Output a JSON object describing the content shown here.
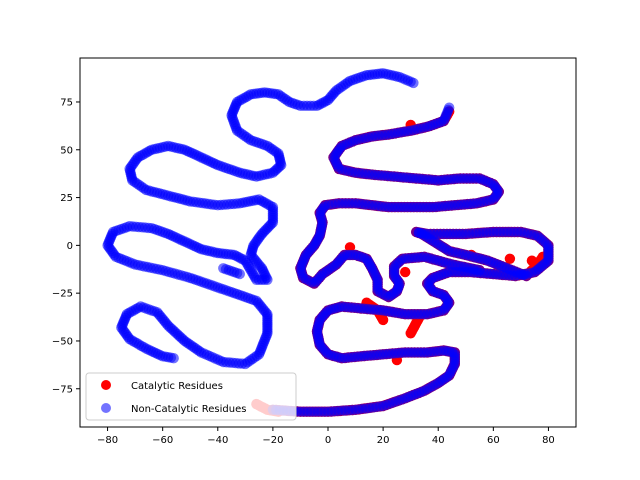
{
  "chart_data": {
    "type": "scatter",
    "title": "",
    "xlabel": "",
    "ylabel": "",
    "xlim": [
      -90,
      90
    ],
    "ylim": [
      -95,
      98
    ],
    "xticks": [
      -80,
      -60,
      -40,
      -20,
      0,
      20,
      40,
      60,
      80
    ],
    "yticks": [
      -75,
      -50,
      -25,
      0,
      25,
      50,
      75
    ],
    "grid": false,
    "legend_position": "lower-left",
    "series": [
      {
        "name": "Catalytic Residues",
        "color": "#ff0000",
        "opacity": 1.0,
        "path": [
          [
            -20,
            -86
          ],
          [
            -10,
            -87
          ],
          [
            0,
            -87
          ],
          [
            10,
            -86
          ],
          [
            20,
            -84
          ],
          [
            28,
            -80
          ],
          [
            35,
            -76
          ],
          [
            40,
            -72
          ],
          [
            44,
            -68
          ],
          [
            46,
            -62
          ],
          [
            46,
            -56
          ],
          [
            42,
            -55
          ],
          [
            36,
            -56
          ],
          [
            28,
            -56
          ],
          [
            20,
            -57
          ],
          [
            12,
            -58
          ],
          [
            5,
            -59
          ],
          [
            0,
            -57
          ],
          [
            -3,
            -52
          ],
          [
            -4,
            -45
          ],
          [
            -3,
            -39
          ],
          [
            0,
            -34
          ],
          [
            5,
            -32
          ],
          [
            12,
            -33
          ],
          [
            20,
            -34
          ],
          [
            28,
            -36
          ],
          [
            36,
            -36
          ],
          [
            42,
            -34
          ],
          [
            44,
            -30
          ],
          [
            42,
            -26
          ],
          [
            38,
            -24
          ],
          [
            36,
            -20
          ],
          [
            38,
            -17
          ],
          [
            44,
            -14
          ],
          [
            52,
            -14
          ],
          [
            60,
            -15
          ],
          [
            68,
            -16
          ],
          [
            75,
            -14
          ],
          [
            80,
            -8
          ],
          [
            80,
            0
          ],
          [
            76,
            5
          ],
          [
            70,
            7
          ],
          [
            60,
            7
          ],
          [
            50,
            6
          ],
          [
            42,
            6
          ],
          [
            36,
            6
          ],
          [
            32,
            7
          ],
          [
            34,
            6
          ],
          [
            44,
            -3
          ],
          [
            50,
            -5
          ],
          [
            58,
            -8
          ],
          [
            65,
            -12
          ],
          [
            72,
            -16
          ],
          [
            76,
            -10
          ],
          [
            78,
            -6
          ],
          [
            55,
            -13
          ],
          [
            45,
            -10
          ],
          [
            35,
            -6
          ],
          [
            27,
            -7
          ],
          [
            24,
            -11
          ],
          [
            24,
            -16
          ],
          [
            26,
            -20
          ],
          [
            25,
            -24
          ],
          [
            22,
            -27
          ],
          [
            18,
            -24
          ],
          [
            18,
            -18
          ],
          [
            16,
            -12
          ],
          [
            14,
            -7
          ],
          [
            10,
            -5
          ],
          [
            6,
            -5
          ],
          [
            3,
            -10
          ],
          [
            -2,
            -15
          ],
          [
            -5,
            -20
          ],
          [
            -9,
            -17
          ],
          [
            -10,
            -12
          ],
          [
            -8,
            -5
          ],
          [
            -5,
            0
          ],
          [
            -3,
            5
          ],
          [
            -2,
            12
          ],
          [
            -3,
            17
          ],
          [
            -1,
            21
          ],
          [
            4,
            22
          ],
          [
            10,
            22
          ],
          [
            16,
            21
          ],
          [
            22,
            20
          ],
          [
            30,
            20
          ],
          [
            38,
            20
          ],
          [
            46,
            21
          ],
          [
            54,
            22
          ],
          [
            60,
            24
          ],
          [
            62,
            28
          ],
          [
            60,
            32
          ],
          [
            55,
            35
          ],
          [
            48,
            35
          ],
          [
            40,
            34
          ],
          [
            32,
            35
          ],
          [
            24,
            36
          ],
          [
            16,
            37
          ],
          [
            10,
            38
          ],
          [
            4,
            40
          ],
          [
            2,
            46
          ],
          [
            5,
            52
          ],
          [
            10,
            55
          ],
          [
            16,
            57
          ],
          [
            22,
            58
          ],
          [
            30,
            60
          ],
          [
            36,
            62
          ],
          [
            42,
            65
          ],
          [
            44,
            70
          ],
          [
            30,
            63
          ],
          [
            14,
            -30
          ],
          [
            18,
            -34
          ],
          [
            20,
            -39
          ],
          [
            25,
            -60
          ],
          [
            30,
            -46
          ],
          [
            33,
            -38
          ],
          [
            -26,
            -83
          ],
          [
            -22,
            -86
          ],
          [
            -18,
            -87
          ],
          [
            74,
            -8
          ],
          [
            52,
            -5
          ],
          [
            66,
            -7
          ],
          [
            8,
            -1
          ],
          [
            28,
            -14
          ]
        ]
      },
      {
        "name": "Non-Catalytic Residues",
        "color": "#0000ff",
        "opacity": 0.55,
        "path": [
          [
            -20,
            -86
          ],
          [
            -10,
            -87
          ],
          [
            0,
            -87
          ],
          [
            10,
            -86
          ],
          [
            20,
            -84
          ],
          [
            28,
            -80
          ],
          [
            35,
            -76
          ],
          [
            40,
            -72
          ],
          [
            44,
            -68
          ],
          [
            46,
            -62
          ],
          [
            46,
            -56
          ],
          [
            42,
            -55
          ],
          [
            36,
            -56
          ],
          [
            28,
            -56
          ],
          [
            20,
            -57
          ],
          [
            12,
            -58
          ],
          [
            5,
            -59
          ],
          [
            0,
            -57
          ],
          [
            -3,
            -52
          ],
          [
            -4,
            -45
          ],
          [
            -3,
            -39
          ],
          [
            0,
            -34
          ],
          [
            5,
            -32
          ],
          [
            12,
            -33
          ],
          [
            20,
            -34
          ],
          [
            28,
            -36
          ],
          [
            36,
            -36
          ],
          [
            42,
            -34
          ],
          [
            44,
            -30
          ],
          [
            42,
            -26
          ],
          [
            38,
            -24
          ],
          [
            36,
            -20
          ],
          [
            38,
            -17
          ],
          [
            44,
            -14
          ],
          [
            52,
            -14
          ],
          [
            60,
            -15
          ],
          [
            68,
            -16
          ],
          [
            75,
            -14
          ],
          [
            80,
            -8
          ],
          [
            80,
            0
          ],
          [
            76,
            5
          ],
          [
            70,
            7
          ],
          [
            60,
            7
          ],
          [
            50,
            6
          ],
          [
            42,
            6
          ],
          [
            36,
            6
          ],
          [
            32,
            7
          ],
          [
            34,
            6
          ],
          [
            44,
            -3
          ],
          [
            50,
            -5
          ],
          [
            58,
            -8
          ],
          [
            65,
            -12
          ],
          [
            72,
            -16
          ],
          [
            55,
            -13
          ],
          [
            45,
            -10
          ],
          [
            35,
            -6
          ],
          [
            27,
            -7
          ],
          [
            24,
            -11
          ],
          [
            24,
            -16
          ],
          [
            26,
            -20
          ],
          [
            25,
            -24
          ],
          [
            22,
            -27
          ],
          [
            18,
            -24
          ],
          [
            18,
            -18
          ],
          [
            16,
            -12
          ],
          [
            14,
            -7
          ],
          [
            10,
            -5
          ],
          [
            6,
            -5
          ],
          [
            3,
            -10
          ],
          [
            -2,
            -15
          ],
          [
            -5,
            -20
          ],
          [
            -9,
            -17
          ],
          [
            -10,
            -12
          ],
          [
            -8,
            -5
          ],
          [
            -5,
            0
          ],
          [
            -3,
            5
          ],
          [
            -2,
            12
          ],
          [
            -3,
            17
          ],
          [
            -1,
            21
          ],
          [
            4,
            22
          ],
          [
            10,
            22
          ],
          [
            16,
            21
          ],
          [
            22,
            20
          ],
          [
            30,
            20
          ],
          [
            38,
            20
          ],
          [
            46,
            21
          ],
          [
            54,
            22
          ],
          [
            60,
            24
          ],
          [
            62,
            28
          ],
          [
            60,
            32
          ],
          [
            55,
            35
          ],
          [
            48,
            35
          ],
          [
            40,
            34
          ],
          [
            32,
            35
          ],
          [
            24,
            36
          ],
          [
            16,
            37
          ],
          [
            10,
            38
          ],
          [
            4,
            40
          ],
          [
            2,
            46
          ],
          [
            5,
            52
          ],
          [
            10,
            55
          ],
          [
            16,
            57
          ],
          [
            22,
            58
          ],
          [
            30,
            60
          ],
          [
            36,
            62
          ],
          [
            42,
            65
          ],
          [
            44,
            72
          ]
        ],
        "path2": [
          [
            31,
            85
          ],
          [
            26,
            88
          ],
          [
            20,
            90
          ],
          [
            14,
            89
          ],
          [
            8,
            86
          ],
          [
            3,
            81
          ],
          [
            0,
            76
          ],
          [
            -4,
            73
          ],
          [
            -10,
            73
          ],
          [
            -14,
            75
          ],
          [
            -18,
            79
          ],
          [
            -23,
            80
          ],
          [
            -28,
            79
          ],
          [
            -33,
            75
          ],
          [
            -35,
            68
          ],
          [
            -33,
            60
          ],
          [
            -28,
            55
          ],
          [
            -22,
            52
          ],
          [
            -18,
            48
          ],
          [
            -17,
            42
          ],
          [
            -20,
            38
          ],
          [
            -26,
            36
          ],
          [
            -32,
            38
          ],
          [
            -40,
            42
          ],
          [
            -46,
            46
          ],
          [
            -52,
            50
          ],
          [
            -58,
            52
          ],
          [
            -64,
            50
          ],
          [
            -69,
            46
          ],
          [
            -72,
            40
          ],
          [
            -71,
            34
          ],
          [
            -66,
            29
          ],
          [
            -58,
            26
          ],
          [
            -50,
            23
          ],
          [
            -40,
            21
          ],
          [
            -32,
            22
          ],
          [
            -25,
            24
          ],
          [
            -20,
            20
          ],
          [
            -20,
            12
          ],
          [
            -24,
            6
          ],
          [
            -27,
            0
          ],
          [
            -28,
            -5
          ],
          [
            -24,
            -12
          ],
          [
            -22,
            -18
          ],
          [
            -26,
            -18
          ],
          [
            -30,
            -8
          ],
          [
            -34,
            -5
          ],
          [
            -40,
            -4
          ],
          [
            -46,
            -2
          ],
          [
            -52,
            2
          ],
          [
            -58,
            6
          ],
          [
            -64,
            9
          ],
          [
            -72,
            10
          ],
          [
            -78,
            7
          ],
          [
            -80,
            0
          ],
          [
            -77,
            -6
          ],
          [
            -70,
            -10
          ],
          [
            -60,
            -13
          ],
          [
            -50,
            -17
          ],
          [
            -42,
            -21
          ],
          [
            -34,
            -25
          ],
          [
            -26,
            -29
          ],
          [
            -22,
            -36
          ],
          [
            -22,
            -46
          ],
          [
            -25,
            -57
          ],
          [
            -30,
            -62
          ],
          [
            -38,
            -61
          ],
          [
            -46,
            -56
          ],
          [
            -52,
            -50
          ],
          [
            -58,
            -42
          ],
          [
            -62,
            -35
          ],
          [
            -68,
            -32
          ],
          [
            -73,
            -36
          ],
          [
            -75,
            -43
          ],
          [
            -72,
            -49
          ],
          [
            -66,
            -54
          ],
          [
            -60,
            -58
          ],
          [
            -56,
            -59
          ]
        ],
        "tail": [
          [
            -38,
            -12
          ],
          [
            -32,
            -15
          ]
        ]
      }
    ]
  }
}
